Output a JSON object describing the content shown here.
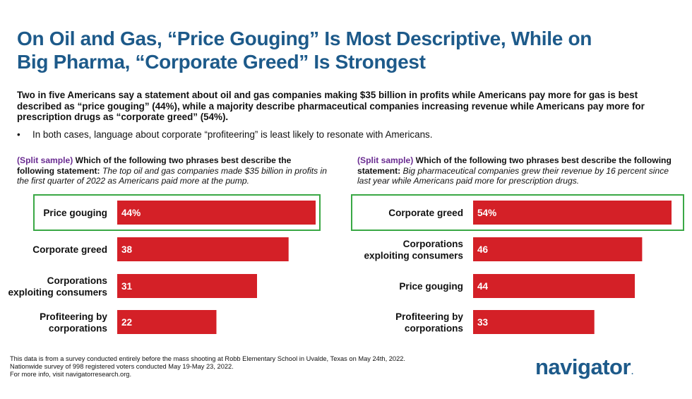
{
  "title": {
    "line1": "On Oil and Gas, “Price Gouging” Is Most Descriptive, While on",
    "line2": "Big Pharma, “Corporate Greed” Is Strongest"
  },
  "intro": "Two in five Americans say a statement about oil and gas companies making $35 billion in profits while Americans pay more for gas is best described as “price gouging” (44%), while a majority describe pharmaceutical companies increasing revenue while Americans pay more for prescription drugs as “corporate greed” (54%).",
  "bullet": {
    "marker": "•",
    "text": "In both cases, language about corporate “profiteering” is least likely to resonate with Americans."
  },
  "questions": [
    {
      "tag": "(Split sample)",
      "lead": "Which of the following two phrases best describe the following statement:",
      "statement": "The top oil and gas companies made $35 billion in profits in the first quarter of 2022 as Americans paid more at the pump."
    },
    {
      "tag": "(Split sample)",
      "lead": "Which of the following two phrases best describe the following statement:",
      "statement": "Big pharmaceutical companies grew their revenue by 16 percent since last year while Americans paid more for prescription drugs."
    }
  ],
  "chart_data": [
    {
      "type": "bar",
      "orientation": "horizontal",
      "categories": [
        "Price gouging",
        "Corporate greed",
        "Corporations exploiting consumers",
        "Profiteering by corporations"
      ],
      "values": [
        44,
        38,
        31,
        22
      ],
      "value_labels": [
        "44%",
        "38",
        "31",
        "22"
      ],
      "highlight_index": 0,
      "xlim": [
        0,
        44
      ],
      "bar_color": "#d42027",
      "highlight_color": "#3aa845"
    },
    {
      "type": "bar",
      "orientation": "horizontal",
      "categories": [
        "Corporate greed",
        "Corporations exploiting consumers",
        "Price gouging",
        "Profiteering by corporations"
      ],
      "values": [
        54,
        46,
        44,
        33
      ],
      "value_labels": [
        "54%",
        "46",
        "44",
        "33"
      ],
      "highlight_index": 0,
      "xlim": [
        0,
        54
      ],
      "bar_color": "#d42027",
      "highlight_color": "#3aa845"
    }
  ],
  "footnote": {
    "line1": "This data is from a survey conducted entirely before the mass shooting at Robb Elementary School in Uvalde, Texas on May 24th, 2022.",
    "line2": "Nationwide survey of 998 registered voters conducted May 19-May 23, 2022.",
    "line3": "For more info, visit navigatorresearch.org."
  },
  "logo": {
    "text": "navigator",
    "mark": "."
  }
}
